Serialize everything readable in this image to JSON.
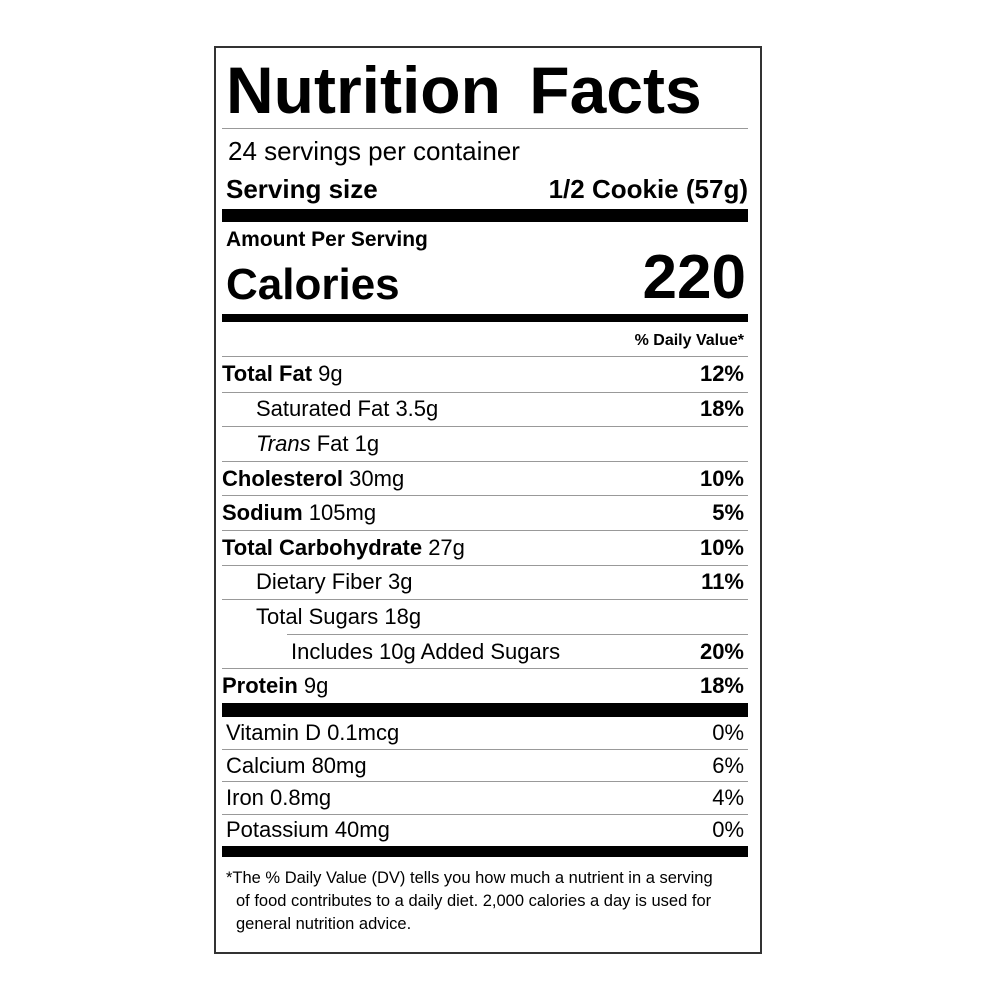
{
  "title": "Nutrition Facts",
  "servings": "24 servings per container",
  "serving_size": {
    "label": "Serving size",
    "value": "1/2 Cookie (57g)"
  },
  "amount_per_serving": "Amount Per Serving",
  "calories": {
    "label": "Calories",
    "value": 220
  },
  "dv_header": "% Daily Value*",
  "nutrients": [
    {
      "name": "Total Fat",
      "amount": "9g",
      "dv": "12%"
    },
    {
      "name": "Saturated Fat",
      "amount": "3.5g",
      "dv": "18%"
    },
    {
      "name_italic": "Trans",
      "name": "Fat",
      "amount": "1g"
    },
    {
      "name": "Cholesterol",
      "amount": "30mg",
      "dv": "10%"
    },
    {
      "name": "Sodium",
      "amount": "105mg",
      "dv": "5%"
    },
    {
      "name": "Total Carbohydrate",
      "amount": "27g",
      "dv": "10%"
    },
    {
      "name": "Dietary Fiber",
      "amount": "3g",
      "dv": "11%"
    },
    {
      "name": "Total Sugars",
      "amount": "18g"
    },
    {
      "name": "Includes 10g Added Sugars",
      "dv": "20%"
    },
    {
      "name": "Protein",
      "amount": "9g",
      "dv": "18%"
    }
  ],
  "vitamins": [
    {
      "name": "Vitamin D 0.1mcg",
      "dv": "0%"
    },
    {
      "name": "Calcium 80mg",
      "dv": "6%"
    },
    {
      "name": "Iron 0.8mg",
      "dv": "4%"
    },
    {
      "name": "Potassium 40mg",
      "dv": "0%"
    }
  ],
  "footnote": "*The % Daily Value (DV) tells you how much a nutrient in a serving of food contributes to a daily diet. 2,000 calories a day is used for general nutrition advice."
}
